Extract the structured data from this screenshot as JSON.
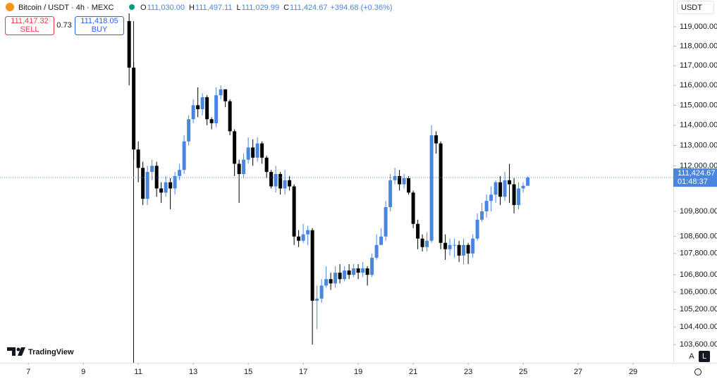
{
  "chart_data": {
    "type": "candlestick",
    "title": "Bitcoin / USDT · 4h · MEXC",
    "ohlc_header": [
      {
        "key": "O",
        "value": "111,030.00"
      },
      {
        "key": "H",
        "value": "111,497.11"
      },
      {
        "key": "L",
        "value": "111,029.99"
      },
      {
        "key": "C",
        "value": "111,424.67"
      }
    ],
    "change": "+394.68 (+0.36%)",
    "currency": "USDT",
    "up_color": "#4a86e0",
    "down_color": "#000000",
    "log": true,
    "grid": false,
    "x": [
      10.667,
      10.833,
      11,
      11.167,
      11.333,
      11.5,
      11.667,
      11.833,
      12,
      12.167,
      12.333,
      12.5,
      12.667,
      12.833,
      13,
      13.167,
      13.333,
      13.5,
      13.667,
      13.833,
      14,
      14.167,
      14.333,
      14.5,
      14.667,
      14.833,
      15,
      15.167,
      15.333,
      15.5,
      15.667,
      15.833,
      16,
      16.167,
      16.333,
      16.5,
      16.667,
      16.833,
      17,
      17.167,
      17.333,
      17.5,
      17.667,
      17.833,
      18,
      18.167,
      18.333,
      18.5,
      18.667,
      18.833,
      19,
      19.167,
      19.333,
      19.5,
      19.667,
      19.833,
      20,
      20.167,
      20.333,
      20.5,
      20.667,
      20.833,
      21,
      21.167,
      21.333,
      21.5,
      21.667,
      21.833,
      22,
      22.167,
      22.333,
      22.5,
      22.667,
      22.833,
      23,
      23.167,
      23.333,
      23.5,
      23.667,
      23.833,
      24,
      24.167,
      24.333,
      24.5,
      24.667,
      24.833,
      25,
      25.167
    ],
    "open": [
      119300,
      116900,
      112800,
      111900,
      110400,
      111700,
      112000,
      110900,
      110700,
      111200,
      110900,
      111500,
      111800,
      113200,
      114300,
      115000,
      114800,
      115400,
      114300,
      114100,
      115500,
      115800,
      115200,
      113700,
      112100,
      111600,
      112300,
      112900,
      112400,
      113100,
      112400,
      111700,
      111000,
      111600,
      110900,
      111300,
      111000,
      108600,
      108400,
      108700,
      108900,
      105600,
      105700,
      106300,
      106600,
      106400,
      106900,
      106600,
      107000,
      106800,
      107100,
      106900,
      107100,
      106800,
      107600,
      108200,
      108600,
      110000,
      111300,
      111500,
      111100,
      111400,
      110700,
      109200,
      108500,
      108100,
      108400,
      113500,
      113100,
      108300,
      108000,
      108200,
      108200,
      107700,
      108200,
      107800,
      108500,
      109400,
      109800,
      110300,
      110600,
      111200,
      110500,
      111300,
      111100,
      110100,
      110900,
      111030
    ],
    "high": [
      119700,
      117200,
      113200,
      112200,
      112000,
      112300,
      112200,
      111200,
      111500,
      111400,
      111700,
      112100,
      113500,
      114500,
      115300,
      115900,
      115600,
      115500,
      114400,
      115900,
      116000,
      115800,
      115300,
      113800,
      112300,
      112600,
      113400,
      113300,
      113400,
      113200,
      112500,
      111800,
      112000,
      111700,
      111800,
      111500,
      111100,
      108900,
      109200,
      109100,
      109000,
      106300,
      106600,
      107200,
      106900,
      107200,
      107300,
      107200,
      107300,
      107300,
      107300,
      107400,
      107200,
      107800,
      108700,
      109000,
      110300,
      111600,
      111900,
      111800,
      111600,
      111500,
      110800,
      109400,
      108700,
      108800,
      114000,
      113700,
      113200,
      108700,
      108500,
      108500,
      108400,
      108500,
      108300,
      108700,
      109700,
      110200,
      110600,
      111000,
      111300,
      111500,
      111700,
      112100,
      111400,
      111200,
      111200,
      111497.11
    ],
    "low": [
      116000,
      112300,
      111200,
      110100,
      110100,
      111300,
      110500,
      110200,
      110500,
      109900,
      110600,
      111300,
      111600,
      113000,
      114100,
      114400,
      114500,
      114000,
      113800,
      113900,
      115300,
      114900,
      113500,
      111500,
      110200,
      111400,
      112100,
      112000,
      112200,
      112100,
      111400,
      110900,
      110700,
      110600,
      110600,
      110800,
      108200,
      108100,
      108300,
      108200,
      103600,
      104300,
      105500,
      106200,
      106100,
      106200,
      106400,
      106500,
      106600,
      106700,
      106600,
      106700,
      106300,
      106700,
      107500,
      108200,
      108400,
      109800,
      111100,
      110800,
      110900,
      110600,
      109000,
      108000,
      107900,
      107900,
      108300,
      112600,
      108000,
      107500,
      107700,
      107600,
      107400,
      107300,
      107300,
      107600,
      108400,
      109300,
      109500,
      109800,
      110200,
      110100,
      110300,
      110200,
      109700,
      109900,
      110700,
      111029.99
    ],
    "close": [
      116900,
      112800,
      111900,
      110400,
      111700,
      112000,
      110900,
      110700,
      111200,
      110900,
      111500,
      111800,
      113200,
      114300,
      115000,
      114800,
      115400,
      114300,
      114100,
      115500,
      115800,
      115200,
      113700,
      112100,
      111600,
      112300,
      112900,
      112400,
      113100,
      112400,
      111700,
      111000,
      111600,
      110900,
      111300,
      111000,
      108600,
      108400,
      108700,
      108900,
      105600,
      105700,
      106300,
      106600,
      106400,
      106900,
      106600,
      107000,
      106800,
      107100,
      106900,
      107100,
      106800,
      107600,
      108200,
      108600,
      110000,
      111300,
      111500,
      111100,
      111400,
      110700,
      109200,
      108500,
      108100,
      108400,
      113500,
      113100,
      108300,
      108000,
      108200,
      108200,
      107700,
      108200,
      107800,
      108500,
      109400,
      109800,
      110300,
      110600,
      111200,
      110500,
      111300,
      111100,
      110100,
      110900,
      111030,
      111424.67
    ],
    "xlim": [
      5.97,
      30.46
    ],
    "xticks": [
      7,
      9,
      11,
      13,
      15,
      17,
      19,
      21,
      23,
      25,
      27,
      29
    ],
    "ylim": [
      102780,
      120400
    ],
    "yticks": [
      {
        "value": 119000,
        "label": "119,000.00"
      },
      {
        "value": 118000,
        "label": "118,000.00"
      },
      {
        "value": 117000,
        "label": "117,000.00"
      },
      {
        "value": 116000,
        "label": "116,000.00"
      },
      {
        "value": 115000,
        "label": "115,000.00"
      },
      {
        "value": 114000,
        "label": "114,000.00"
      },
      {
        "value": 113000,
        "label": "113,000.00"
      },
      {
        "value": 112000,
        "label": "112,000.00"
      },
      {
        "value": 109800,
        "label": "109,800.00"
      },
      {
        "value": 108600,
        "label": "108,600.00"
      },
      {
        "value": 107800,
        "label": "107,800.00"
      },
      {
        "value": 106800,
        "label": "106,800.00"
      },
      {
        "value": 106000,
        "label": "106,000.00"
      },
      {
        "value": 105200,
        "label": "105,200.00"
      },
      {
        "value": 104400,
        "label": "104,400.00"
      },
      {
        "value": 103600,
        "label": "103,600.00"
      }
    ],
    "last_price": {
      "value": 111424.67,
      "label": "111,424.67",
      "countdown": "01:48:37"
    }
  },
  "trade": {
    "sell_price": "111,417.32",
    "sell_label": "SELL",
    "spread": "0.73",
    "buy_price": "111,418.05",
    "buy_label": "BUY"
  },
  "branding": "TradingView",
  "scale_buttons": [
    "A",
    "L"
  ]
}
